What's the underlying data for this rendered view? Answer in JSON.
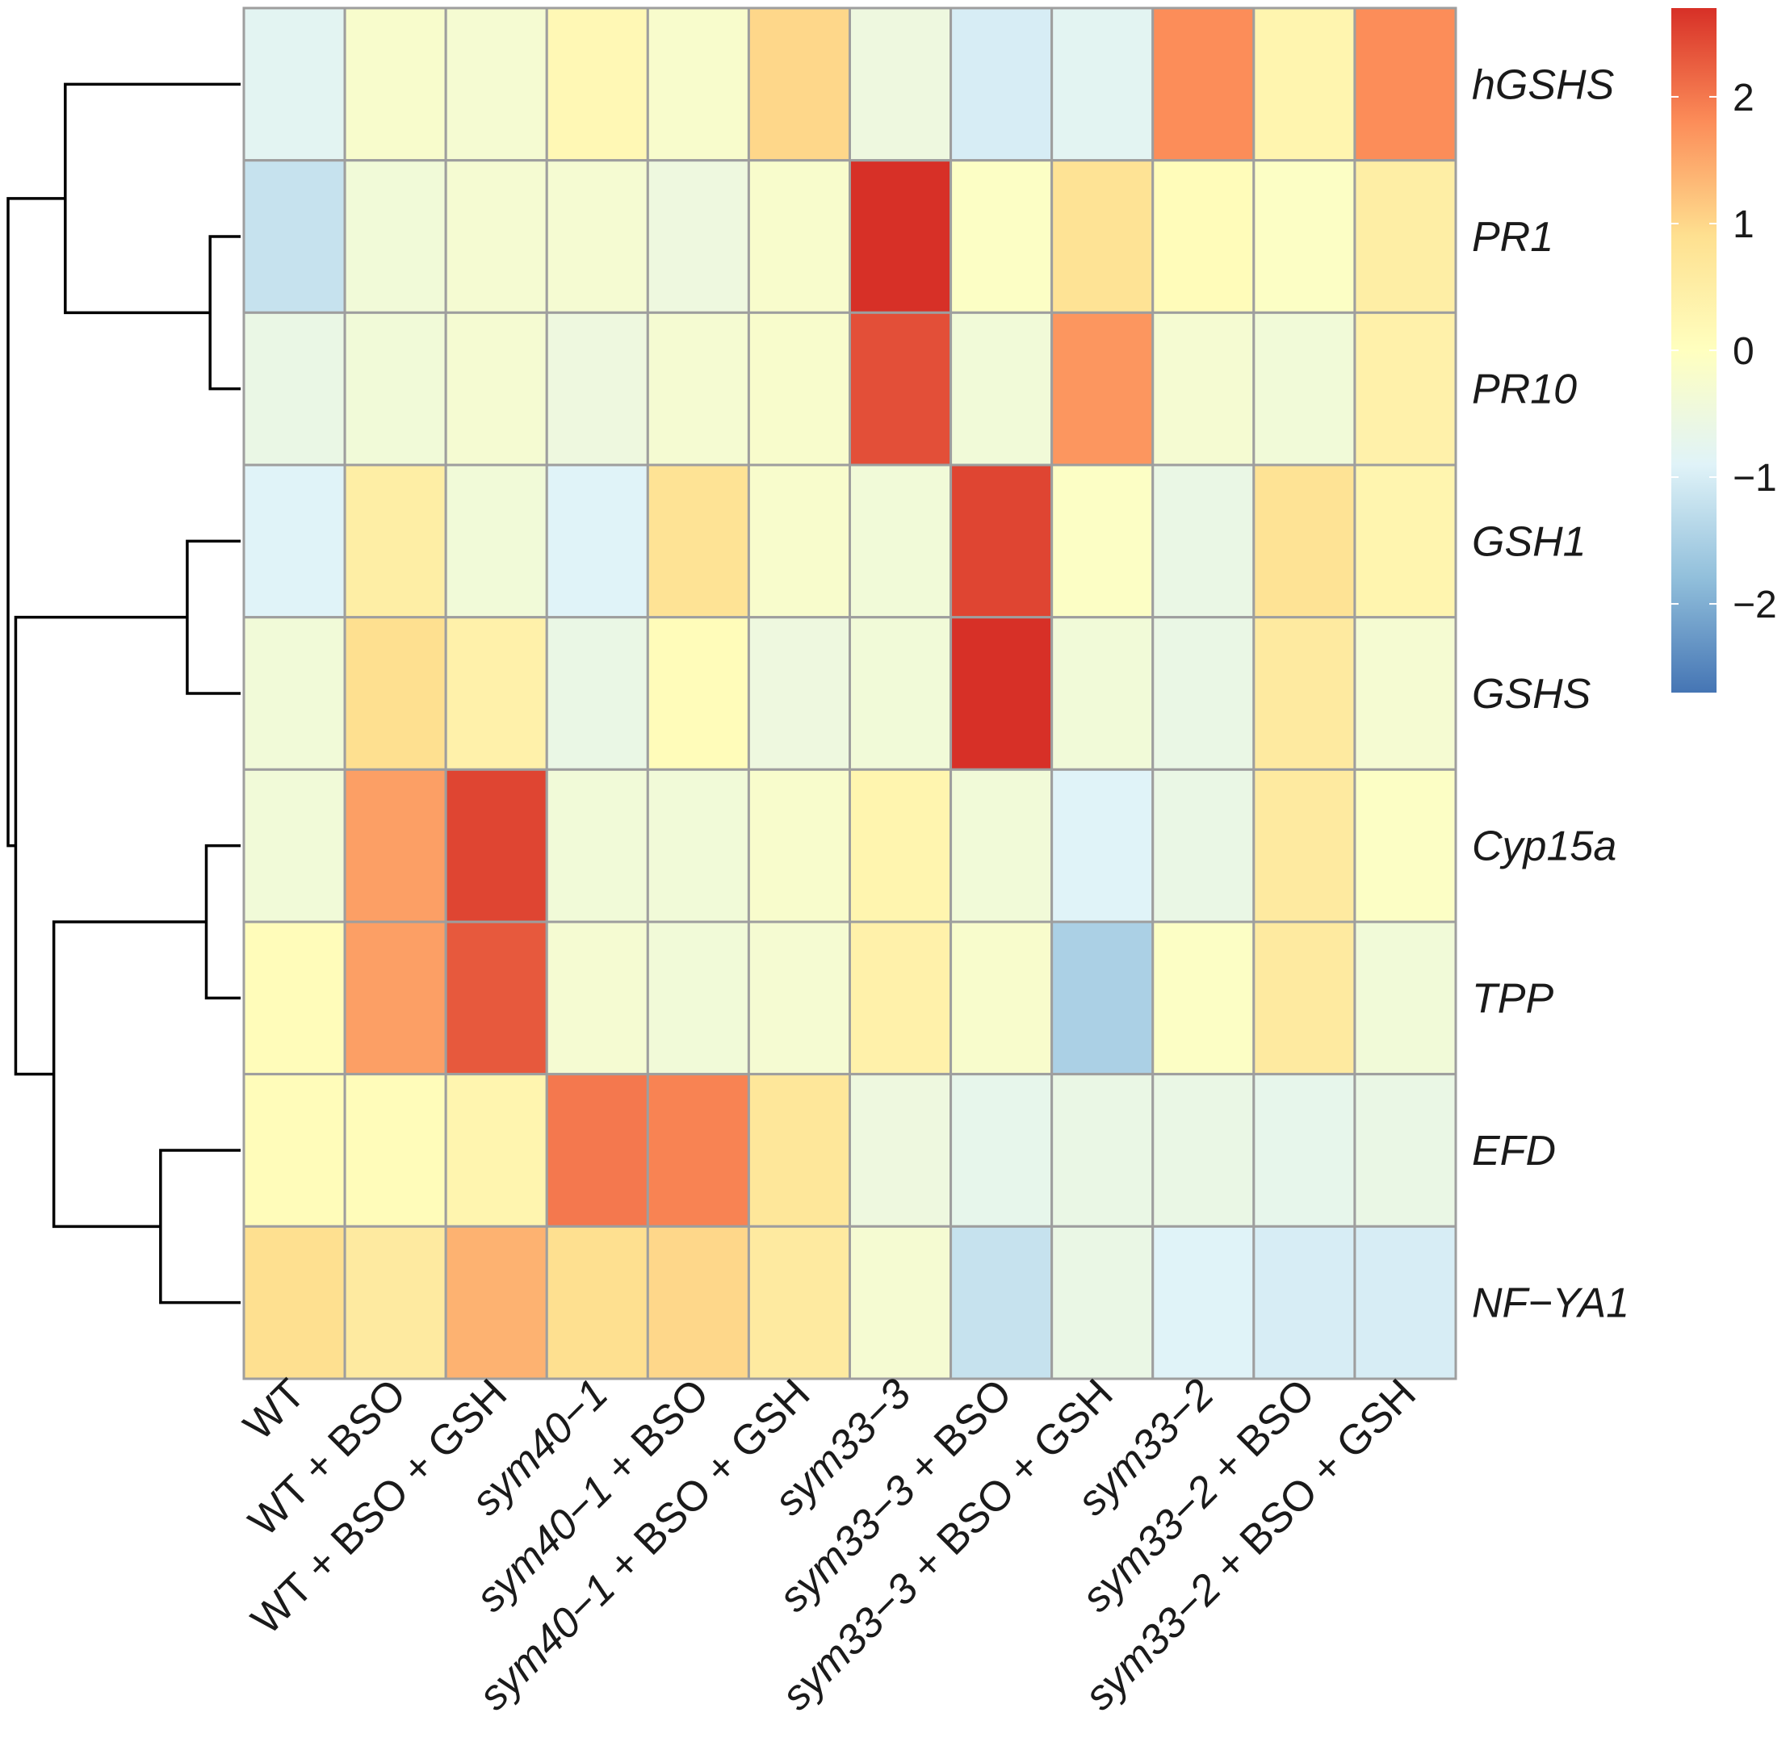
{
  "chart_data": {
    "type": "heatmap",
    "title": "",
    "rows": [
      "hGSHS",
      "PR1",
      "PR10",
      "GSH1",
      "GSHS",
      "Cyp15a",
      "TPP",
      "EFD",
      "NF−YA1"
    ],
    "columns": [
      {
        "parts": [
          {
            "t": "WT",
            "i": false
          }
        ]
      },
      {
        "parts": [
          {
            "t": "WT + BSO",
            "i": false
          }
        ]
      },
      {
        "parts": [
          {
            "t": "WT + BSO + GSH",
            "i": false
          }
        ]
      },
      {
        "parts": [
          {
            "t": "sym40−1",
            "i": true
          }
        ]
      },
      {
        "parts": [
          {
            "t": "sym40−1",
            "i": true
          },
          {
            "t": " + BSO",
            "i": false
          }
        ]
      },
      {
        "parts": [
          {
            "t": "sym40−1",
            "i": true
          },
          {
            "t": " + BSO + GSH",
            "i": false
          }
        ]
      },
      {
        "parts": [
          {
            "t": "sym33−3",
            "i": true
          }
        ]
      },
      {
        "parts": [
          {
            "t": "sym33−3",
            "i": true
          },
          {
            "t": " + BSO",
            "i": false
          }
        ]
      },
      {
        "parts": [
          {
            "t": "sym33−3",
            "i": true
          },
          {
            "t": " + BSO + GSH",
            "i": false
          }
        ]
      },
      {
        "parts": [
          {
            "t": "sym33−2",
            "i": true
          }
        ]
      },
      {
        "parts": [
          {
            "t": "sym33−2",
            "i": true
          },
          {
            "t": " + BSO",
            "i": false
          }
        ]
      },
      {
        "parts": [
          {
            "t": "sym33−2",
            "i": true
          },
          {
            "t": " + BSO + GSH",
            "i": false
          }
        ]
      }
    ],
    "values": [
      [
        -0.8,
        -0.2,
        -0.3,
        0.2,
        -0.2,
        1.0,
        -0.5,
        -1.0,
        -0.8,
        1.8,
        0.3,
        1.8
      ],
      [
        -1.2,
        -0.4,
        -0.3,
        -0.3,
        -0.5,
        -0.2,
        2.7,
        -0.1,
        0.8,
        0.1,
        -0.1,
        0.5
      ],
      [
        -0.6,
        -0.4,
        -0.3,
        -0.5,
        -0.3,
        -0.2,
        2.4,
        -0.4,
        1.7,
        -0.3,
        -0.4,
        0.4
      ],
      [
        -0.9,
        0.5,
        -0.4,
        -0.9,
        0.8,
        -0.2,
        -0.4,
        2.5,
        -0.1,
        -0.6,
        0.8,
        0.3
      ],
      [
        -0.4,
        0.9,
        0.4,
        -0.6,
        0.1,
        -0.5,
        -0.4,
        2.7,
        -0.4,
        -0.6,
        0.6,
        -0.3
      ],
      [
        -0.4,
        1.6,
        2.5,
        -0.4,
        -0.4,
        -0.2,
        0.3,
        -0.4,
        -0.9,
        -0.6,
        0.6,
        -0.1
      ],
      [
        0.1,
        1.6,
        2.3,
        -0.3,
        -0.4,
        -0.3,
        0.4,
        -0.2,
        -1.5,
        -0.1,
        0.6,
        -0.4
      ],
      [
        0.1,
        0.1,
        0.3,
        2.0,
        1.9,
        0.7,
        -0.5,
        -0.7,
        -0.6,
        -0.6,
        -0.7,
        -0.6
      ],
      [
        0.9,
        0.6,
        1.4,
        0.9,
        1.0,
        0.6,
        -0.3,
        -1.2,
        -0.6,
        -0.9,
        -1.0,
        -1.0
      ]
    ],
    "color_scale": {
      "min": -2.7,
      "max": 2.7,
      "ticks": [
        {
          "value": 2,
          "label": "2"
        },
        {
          "value": 1,
          "label": "1"
        },
        {
          "value": 0,
          "label": "0"
        },
        {
          "value": -1,
          "label": "−1"
        },
        {
          "value": -2,
          "label": "−2"
        }
      ],
      "stops": [
        "#4575b4",
        "#91bfdb",
        "#e0f3f8",
        "#ffffbf",
        "#fee090",
        "#fc8d59",
        "#d73027"
      ]
    },
    "row_dendrogram": {
      "merges": [
        [
          1,
          2,
          0.08
        ],
        [
          3,
          4,
          0.14
        ],
        [
          5,
          6,
          0.09
        ],
        [
          7,
          8,
          0.21
        ],
        [
          0,
          9,
          0.46
        ],
        [
          12,
          11,
          0.49
        ],
        [
          10,
          14,
          0.59
        ],
        [
          13,
          15,
          0.61
        ]
      ]
    }
  }
}
